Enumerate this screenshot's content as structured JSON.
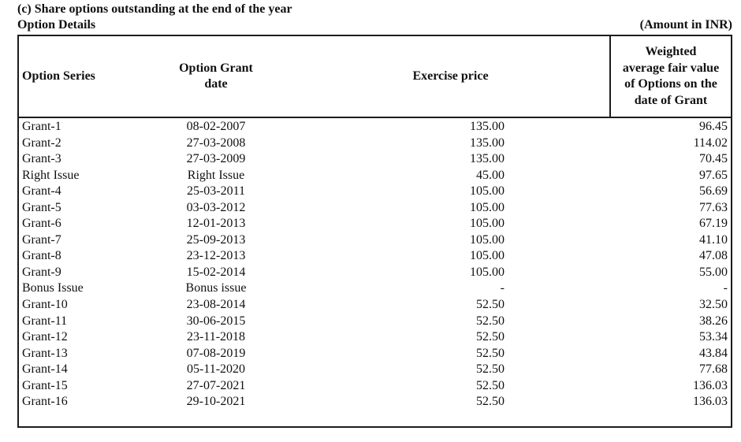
{
  "document": {
    "title": "(c) Share options outstanding at the end of the year",
    "caption_left": "Option Details",
    "caption_right": "(Amount in INR)"
  },
  "table": {
    "headers": [
      {
        "id": "option-series",
        "label": "Option Series"
      },
      {
        "id": "option-grant-date",
        "label": "Option Grant\ndate"
      },
      {
        "id": "exercise-price",
        "label": "Exercise price"
      },
      {
        "id": "weighted-average-fair-value",
        "label": "Weighted\naverage fair value\nof Options on the\ndate of Grant"
      }
    ],
    "rows": [
      {
        "series": "Grant-1",
        "grant_date": "08-02-2007",
        "exercise_price": "135.00",
        "fair_value": "96.45"
      },
      {
        "series": "Grant-2",
        "grant_date": "27-03-2008",
        "exercise_price": "135.00",
        "fair_value": "114.02"
      },
      {
        "series": "Grant-3",
        "grant_date": "27-03-2009",
        "exercise_price": "135.00",
        "fair_value": "70.45"
      },
      {
        "series": "Right Issue",
        "grant_date": "Right Issue",
        "exercise_price": "45.00",
        "fair_value": "97.65"
      },
      {
        "series": "Grant-4",
        "grant_date": "25-03-2011",
        "exercise_price": "105.00",
        "fair_value": "56.69"
      },
      {
        "series": "Grant-5",
        "grant_date": "03-03-2012",
        "exercise_price": "105.00",
        "fair_value": "77.63"
      },
      {
        "series": "Grant-6",
        "grant_date": "12-01-2013",
        "exercise_price": "105.00",
        "fair_value": "67.19"
      },
      {
        "series": "Grant-7",
        "grant_date": "25-09-2013",
        "exercise_price": "105.00",
        "fair_value": "41.10"
      },
      {
        "series": "Grant-8",
        "grant_date": "23-12-2013",
        "exercise_price": "105.00",
        "fair_value": "47.08"
      },
      {
        "series": "Grant-9",
        "grant_date": "15-02-2014",
        "exercise_price": "105.00",
        "fair_value": "55.00"
      },
      {
        "series": "Bonus Issue",
        "grant_date": "Bonus issue",
        "exercise_price": "-",
        "fair_value": "-"
      },
      {
        "series": "Grant-10",
        "grant_date": "23-08-2014",
        "exercise_price": "52.50",
        "fair_value": "32.50"
      },
      {
        "series": "Grant-11",
        "grant_date": "30-06-2015",
        "exercise_price": "52.50",
        "fair_value": "38.26"
      },
      {
        "series": "Grant-12",
        "grant_date": "23-11-2018",
        "exercise_price": "52.50",
        "fair_value": "53.34"
      },
      {
        "series": "Grant-13",
        "grant_date": "07-08-2019",
        "exercise_price": "52.50",
        "fair_value": "43.84"
      },
      {
        "series": "Grant-14",
        "grant_date": "05-11-2020",
        "exercise_price": "52.50",
        "fair_value": "77.68"
      },
      {
        "series": "Grant-15",
        "grant_date": "27-07-2021",
        "exercise_price": "52.50",
        "fair_value": "136.03"
      },
      {
        "series": "Grant-16",
        "grant_date": "29-10-2021",
        "exercise_price": "52.50",
        "fair_value": "136.03"
      }
    ]
  },
  "colors": {
    "text": "#111111",
    "border": "#1c1c1c",
    "background": "#ffffff"
  }
}
